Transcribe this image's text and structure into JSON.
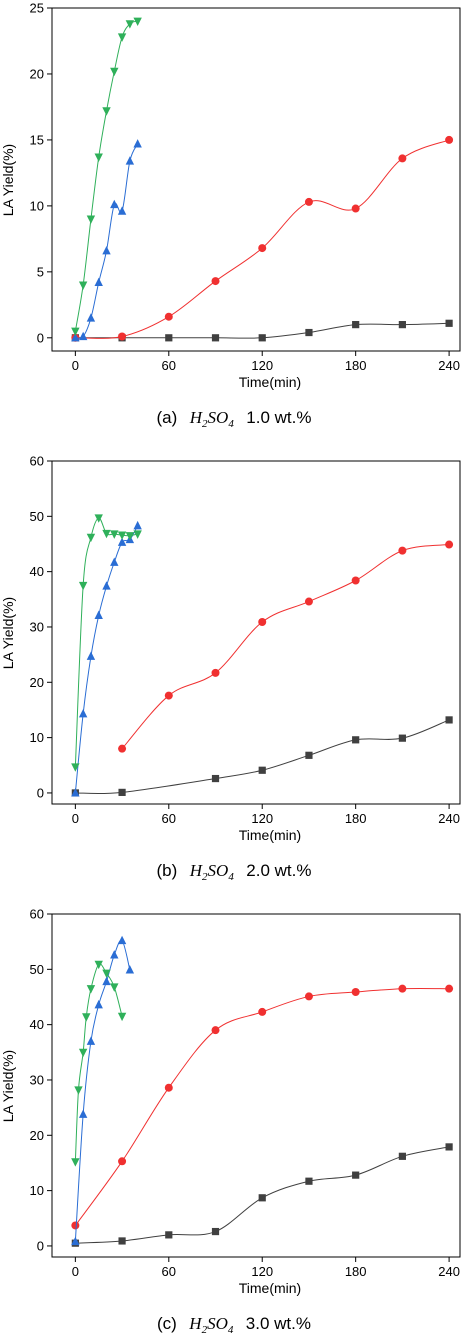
{
  "chart_data": [
    {
      "type": "scatter",
      "caption": {
        "label": "(a)",
        "formula_main": "H",
        "formula_sub1": "2",
        "formula_mid": "SO",
        "formula_sub2": "4",
        "suffix": "1.0 wt.%"
      },
      "xlabel": "Time(min)",
      "ylabel": "LA Yield(%)",
      "xlim": [
        -15,
        247
      ],
      "ylim": [
        -1,
        25
      ],
      "xticks": [
        0,
        60,
        120,
        180,
        240
      ],
      "yticks": [
        0,
        5,
        10,
        15,
        20,
        25
      ],
      "grid": false,
      "series": [
        {
          "marker": "square",
          "color": "#404040",
          "x": [
            0,
            30,
            60,
            90,
            120,
            150,
            180,
            210,
            240
          ],
          "y": [
            0,
            0,
            0,
            0,
            0,
            0.4,
            1.0,
            1.0,
            1.1
          ]
        },
        {
          "marker": "circle",
          "color": "#f03030",
          "x": [
            0,
            30,
            60,
            90,
            120,
            150,
            180,
            210,
            240
          ],
          "y": [
            0,
            0.1,
            1.6,
            4.3,
            6.8,
            10.3,
            9.8,
            13.6,
            15.0
          ]
        },
        {
          "marker": "triangle-up",
          "color": "#2a6dd4",
          "x": [
            0,
            5,
            10,
            15,
            20,
            25,
            30,
            35,
            40
          ],
          "y": [
            0,
            0.1,
            1.5,
            4.2,
            6.6,
            10.1,
            9.6,
            13.4,
            14.7
          ]
        },
        {
          "marker": "triangle-down",
          "color": "#2fb05a",
          "x": [
            0,
            5,
            10,
            15,
            20,
            25,
            30,
            35,
            40
          ],
          "y": [
            0.5,
            4.0,
            9.0,
            13.7,
            17.2,
            20.2,
            22.8,
            23.8,
            24.0
          ]
        }
      ]
    },
    {
      "type": "scatter",
      "caption": {
        "label": "(b)",
        "formula_main": "H",
        "formula_sub1": "2",
        "formula_mid": "SO",
        "formula_sub2": "4",
        "suffix": "2.0 wt.%"
      },
      "xlabel": "Time(min)",
      "ylabel": "LA Yield(%)",
      "xlim": [
        -15,
        247
      ],
      "ylim": [
        -2,
        60
      ],
      "xticks": [
        0,
        60,
        120,
        180,
        240
      ],
      "yticks": [
        0,
        10,
        20,
        30,
        40,
        50,
        60
      ],
      "grid": false,
      "series": [
        {
          "marker": "square",
          "color": "#404040",
          "x": [
            0,
            30,
            90,
            120,
            150,
            180,
            210,
            240
          ],
          "y": [
            0,
            0.1,
            2.6,
            4.1,
            6.8,
            9.6,
            9.9,
            13.2
          ]
        },
        {
          "marker": "circle",
          "color": "#f03030",
          "x": [
            30,
            60,
            90,
            120,
            150,
            180,
            210,
            240
          ],
          "y": [
            8.0,
            17.6,
            21.7,
            30.9,
            34.6,
            38.4,
            43.8,
            44.9
          ]
        },
        {
          "marker": "triangle-up",
          "color": "#2a6dd4",
          "x": [
            0,
            5,
            10,
            15,
            20,
            25,
            30,
            35,
            40
          ],
          "y": [
            0,
            14.3,
            24.7,
            32.1,
            37.4,
            41.7,
            45.3,
            45.8,
            48.3
          ]
        },
        {
          "marker": "triangle-down",
          "color": "#2fb05a",
          "x": [
            0,
            5,
            10,
            15,
            20,
            25,
            30,
            35,
            40
          ],
          "y": [
            4.7,
            37.5,
            46.2,
            49.7,
            46.9,
            46.8,
            46.6,
            46.5,
            46.8
          ]
        }
      ]
    },
    {
      "type": "scatter",
      "caption": {
        "label": "(c)",
        "formula_main": "H",
        "formula_sub1": "2",
        "formula_mid": "SO",
        "formula_sub2": "4",
        "suffix": "3.0 wt.%"
      },
      "xlabel": "Time(min)",
      "ylabel": "LA Yield(%)",
      "xlim": [
        -15,
        247
      ],
      "ylim": [
        -2,
        60
      ],
      "xticks": [
        0,
        60,
        120,
        180,
        240
      ],
      "yticks": [
        0,
        10,
        20,
        30,
        40,
        50,
        60
      ],
      "grid": false,
      "series": [
        {
          "marker": "square",
          "color": "#404040",
          "x": [
            0,
            30,
            60,
            90,
            120,
            150,
            180,
            210,
            240
          ],
          "y": [
            0.5,
            0.9,
            2.0,
            2.6,
            8.7,
            11.7,
            12.8,
            16.2,
            17.9
          ]
        },
        {
          "marker": "circle",
          "color": "#f03030",
          "x": [
            0,
            30,
            60,
            90,
            120,
            150,
            180,
            210,
            240
          ],
          "y": [
            3.7,
            15.3,
            28.6,
            39.0,
            42.3,
            45.1,
            45.9,
            46.5,
            46.5
          ]
        },
        {
          "marker": "triangle-up",
          "color": "#2a6dd4",
          "x": [
            0,
            5,
            10,
            15,
            20,
            25,
            30,
            35
          ],
          "y": [
            0.8,
            23.8,
            37.0,
            43.6,
            47.8,
            52.6,
            55.2,
            49.9
          ]
        },
        {
          "marker": "triangle-down",
          "color": "#2fb05a",
          "x": [
            0,
            2,
            5,
            7,
            10,
            15,
            20,
            25,
            30
          ],
          "y": [
            15.2,
            28.2,
            35.0,
            41.4,
            46.5,
            50.9,
            49.3,
            46.8,
            41.5
          ]
        }
      ]
    }
  ]
}
